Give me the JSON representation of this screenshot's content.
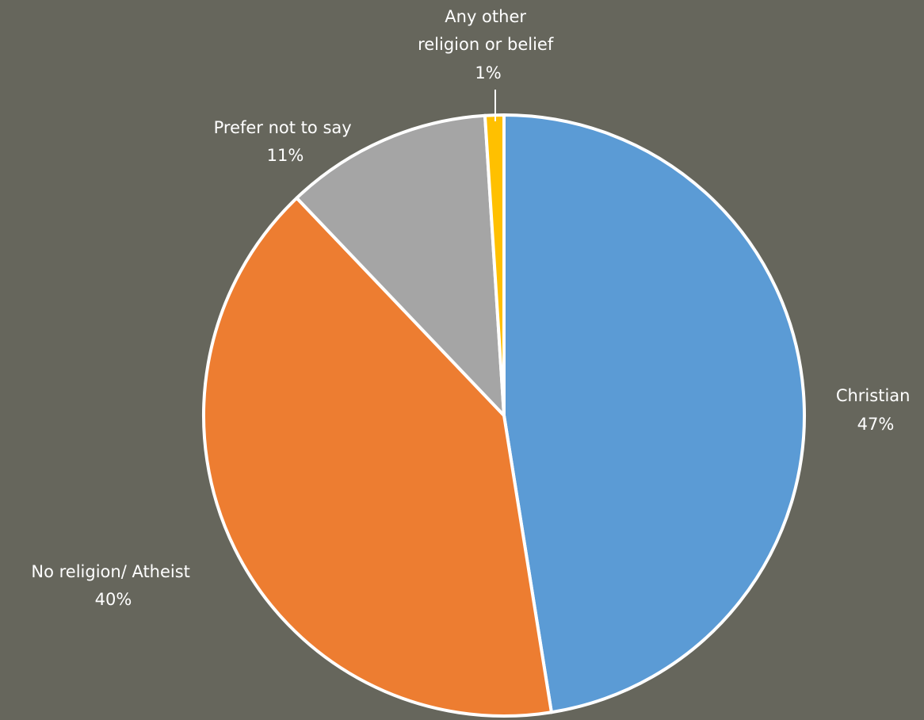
{
  "chart_data": {
    "type": "pie",
    "categories": [
      "Christian",
      "No religion/ Atheist",
      "Prefer not to say",
      "Any other religion or belief"
    ],
    "values": [
      47,
      40,
      11,
      1
    ],
    "value_labels": [
      "47%",
      "40%",
      "11%",
      "1%"
    ],
    "label_lines": [
      [
        "Christian"
      ],
      [
        "No religion/ Atheist"
      ],
      [
        "Prefer not to say"
      ],
      [
        "Any other",
        "religion or belief"
      ]
    ],
    "colors": [
      "#5b9bd5",
      "#ed7d31",
      "#a5a5a5",
      "#ffc000"
    ],
    "start_angle_deg": 0,
    "direction": "clockwise",
    "legend": "none",
    "background": "#66665c",
    "slice_border": "#ffffff"
  }
}
